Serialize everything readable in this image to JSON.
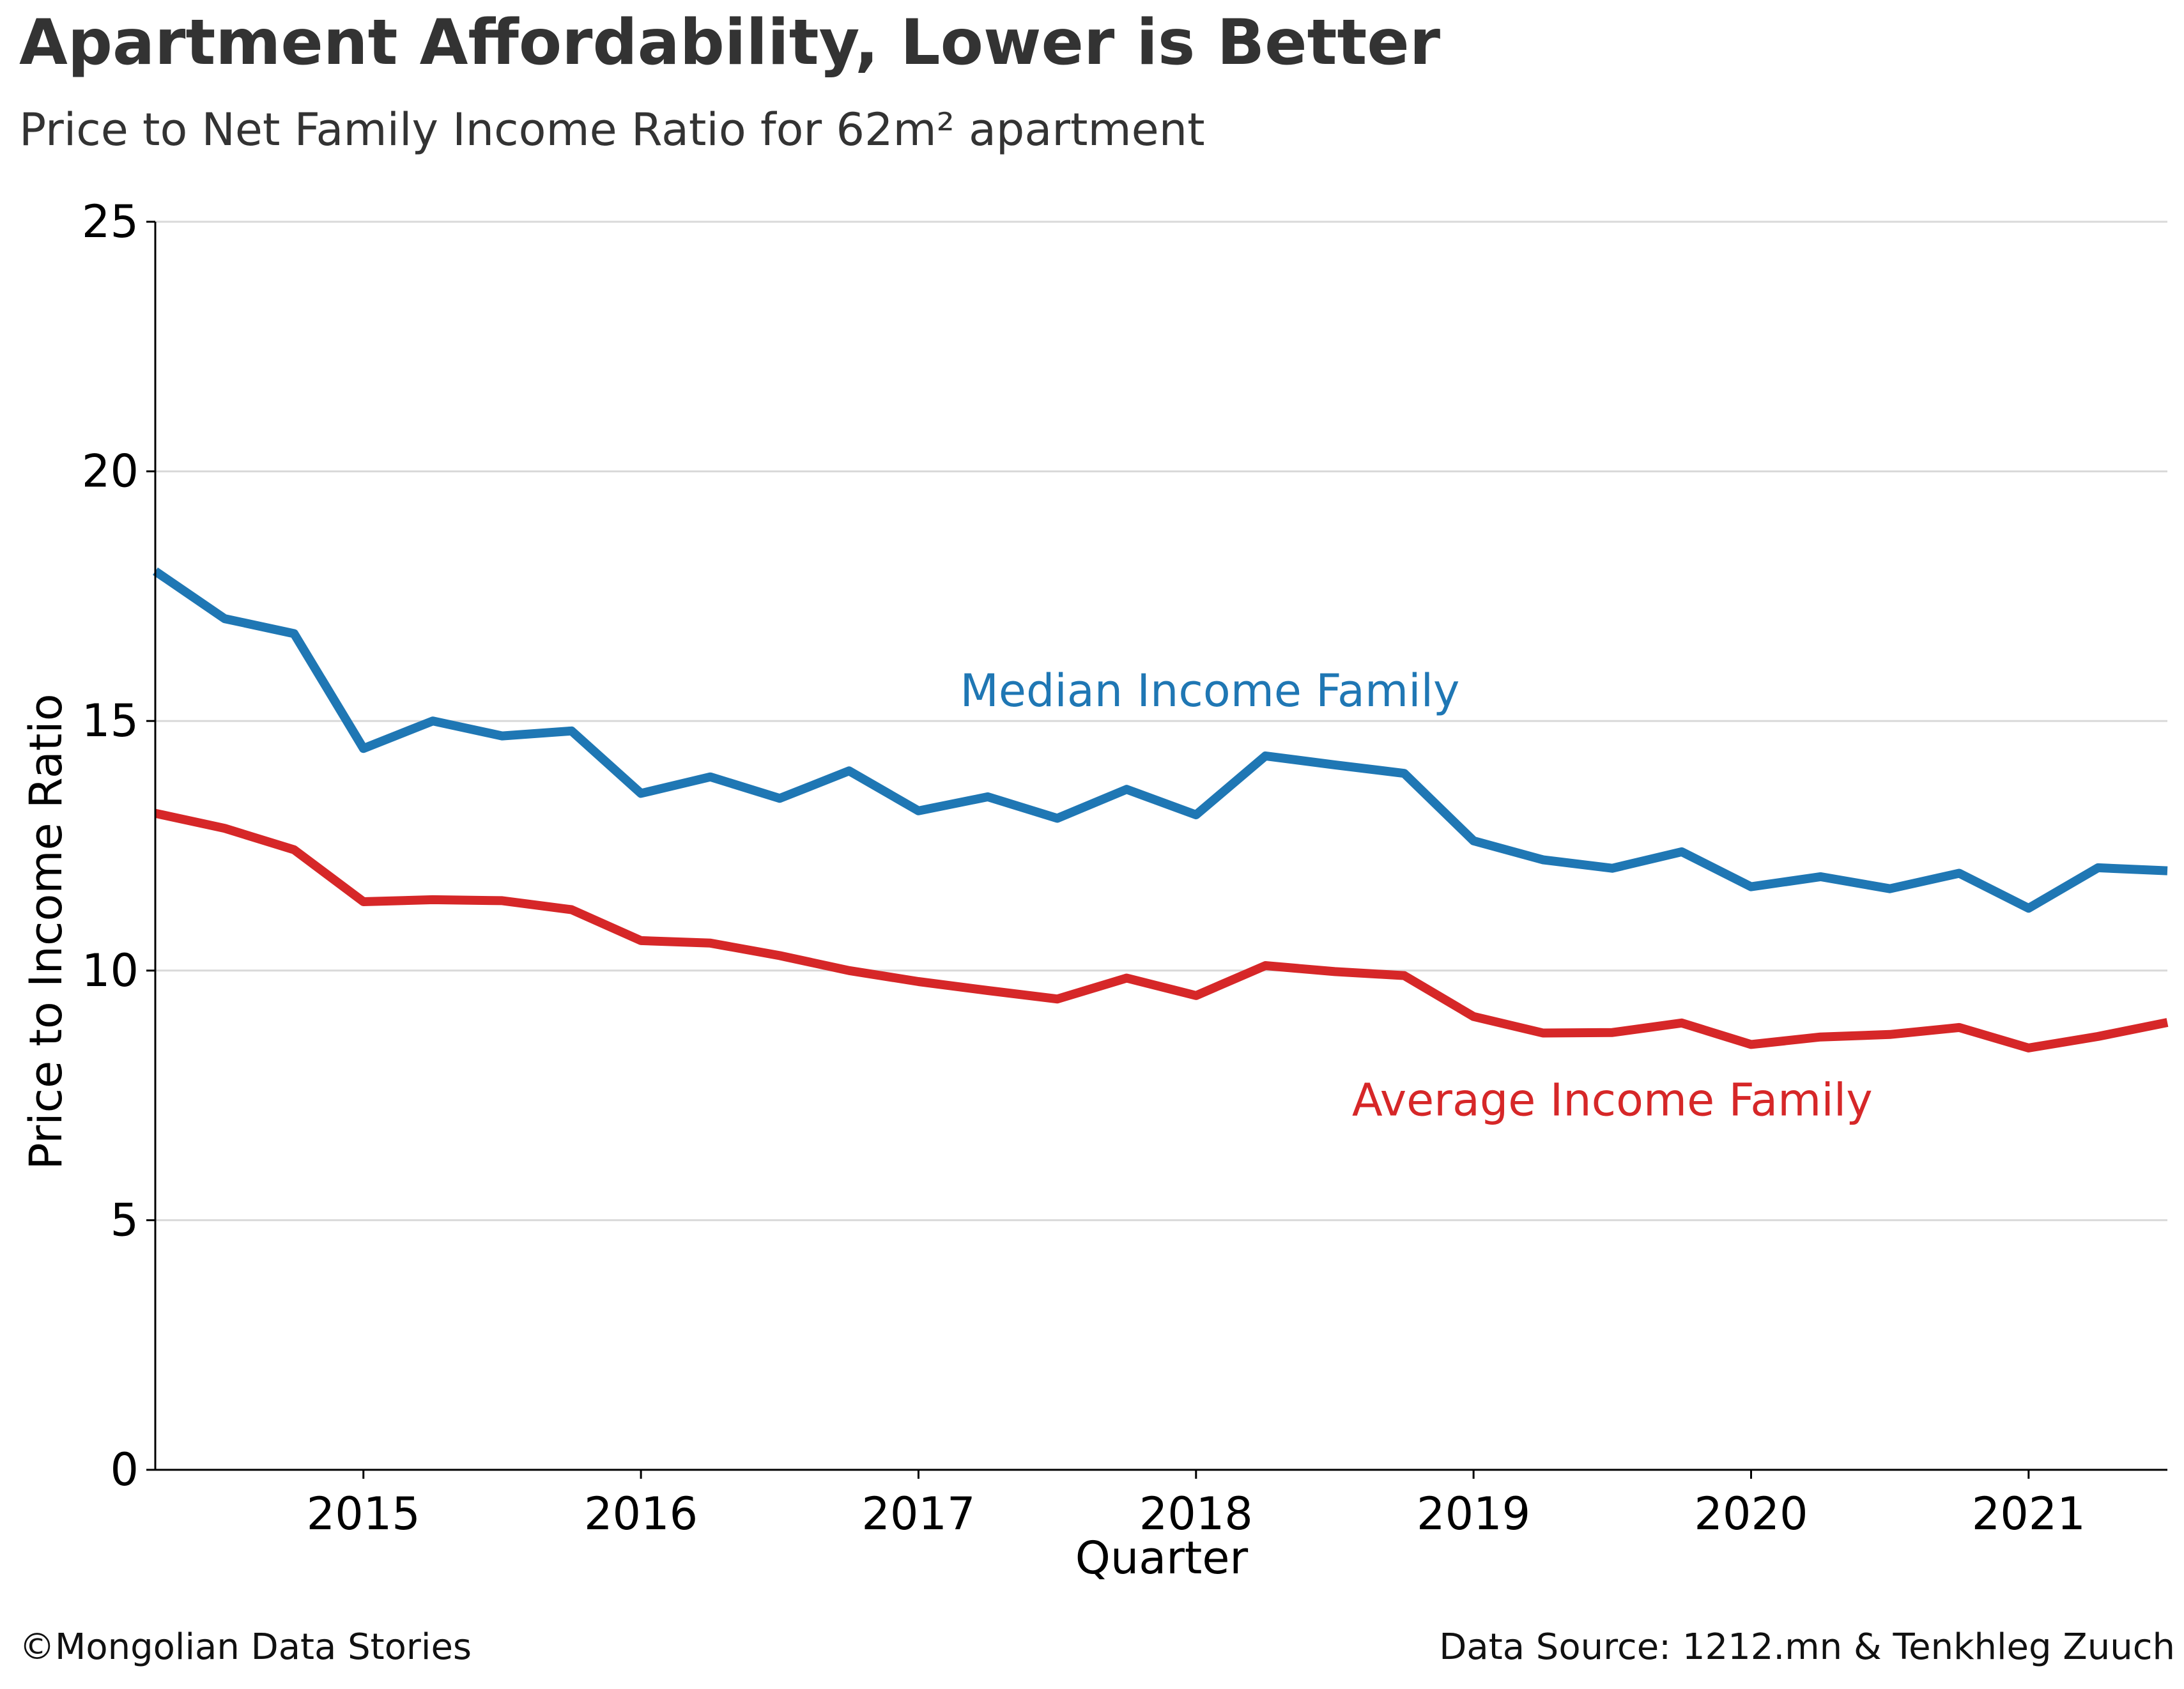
{
  "title": "Apartment Affordability, Lower is Better",
  "subtitle": "Price to Net Family Income Ratio for 62m² apartment",
  "footer": {
    "left": "©Mongolian Data Stories",
    "right": "Data Source: 1212.mn & Tenkhleg Zuuch"
  },
  "colors": {
    "median": "#1f77b4",
    "average": "#d62728",
    "grid": "#d9d9d9",
    "axis": "#000000",
    "text": "#333333"
  },
  "chart_data": {
    "type": "line",
    "xlabel": "Quarter",
    "ylabel": "Price to Income Ratio",
    "xlim": [
      2014.25,
      2021.5
    ],
    "ylim": [
      0,
      25
    ],
    "x_ticks": [
      2015,
      2016,
      2017,
      2018,
      2019,
      2020,
      2021
    ],
    "x_tick_labels": [
      "2015",
      "2016",
      "2017",
      "2018",
      "2019",
      "2020",
      "2021"
    ],
    "y_ticks": [
      0,
      5,
      10,
      15,
      20,
      25
    ],
    "y_tick_labels": [
      "0",
      "5",
      "10",
      "15",
      "20",
      "25"
    ],
    "grid": "horizontal",
    "x": [
      2014.25,
      2014.5,
      2014.75,
      2015.0,
      2015.25,
      2015.5,
      2015.75,
      2016.0,
      2016.25,
      2016.5,
      2016.75,
      2017.0,
      2017.25,
      2017.5,
      2017.75,
      2018.0,
      2018.25,
      2018.5,
      2018.75,
      2019.0,
      2019.25,
      2019.5,
      2019.75,
      2020.0,
      2020.25,
      2020.5,
      2020.75,
      2021.0,
      2021.25,
      2021.5
    ],
    "series": [
      {
        "name": "Median Income Family",
        "color": "#1f77b4",
        "label_at": [
          2018.05,
          15.3
        ],
        "values": [
          18.0,
          17.05,
          16.75,
          14.45,
          15.0,
          14.7,
          14.8,
          13.55,
          13.88,
          13.45,
          14.0,
          13.2,
          13.48,
          13.05,
          13.63,
          13.12,
          14.3,
          14.12,
          13.95,
          12.6,
          12.22,
          12.05,
          12.38,
          11.68,
          11.88,
          11.64,
          11.95,
          11.25,
          12.06,
          12.0
        ]
      },
      {
        "name": "Average Income Family",
        "color": "#d62728",
        "label_at": [
          2019.5,
          7.1
        ],
        "values": [
          13.15,
          12.85,
          12.42,
          11.38,
          11.42,
          11.4,
          11.22,
          10.6,
          10.55,
          10.3,
          10.0,
          9.78,
          9.6,
          9.43,
          9.85,
          9.5,
          10.1,
          9.98,
          9.9,
          9.08,
          8.75,
          8.76,
          8.95,
          8.52,
          8.67,
          8.72,
          8.86,
          8.45,
          8.68,
          8.96
        ]
      }
    ]
  }
}
